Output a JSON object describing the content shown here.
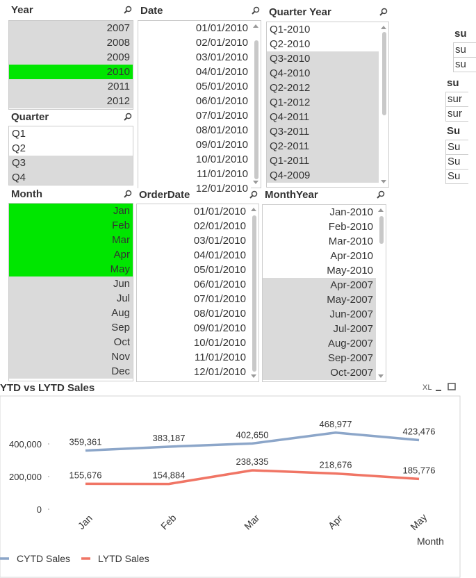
{
  "listboxes": [
    {
      "title": "Year",
      "items": [
        "2007",
        "2008",
        "2009",
        "2010",
        "2011",
        "2012"
      ],
      "states": [
        "excluded",
        "excluded",
        "excluded",
        "selected",
        "excluded",
        "excluded"
      ]
    },
    {
      "title": "Date",
      "items": [
        "01/01/2010",
        "02/01/2010",
        "03/01/2010",
        "04/01/2010",
        "05/01/2010",
        "06/01/2010",
        "07/01/2010",
        "08/01/2010",
        "09/01/2010",
        "10/01/2010",
        "11/01/2010",
        "12/01/2010"
      ],
      "states": [
        "optional",
        "optional",
        "optional",
        "optional",
        "optional",
        "optional",
        "optional",
        "optional",
        "optional",
        "optional",
        "optional",
        "optional"
      ]
    },
    {
      "title": "Quarter Year",
      "items": [
        "Q1-2010",
        "Q2-2010",
        "Q3-2010",
        "Q4-2010",
        "Q2-2012",
        "Q1-2012",
        "Q4-2011",
        "Q3-2011",
        "Q2-2011",
        "Q1-2011",
        "Q4-2009"
      ],
      "states": [
        "optional",
        "optional",
        "excluded",
        "excluded",
        "excluded",
        "excluded",
        "excluded",
        "excluded",
        "excluded",
        "excluded",
        "excluded"
      ]
    },
    {
      "title": "Quarter",
      "items": [
        "Q1",
        "Q2",
        "Q3",
        "Q4"
      ],
      "states": [
        "optional",
        "optional",
        "excluded",
        "excluded"
      ]
    },
    {
      "title": "Month",
      "items": [
        "Jan",
        "Feb",
        "Mar",
        "Apr",
        "May",
        "Jun",
        "Jul",
        "Aug",
        "Sep",
        "Oct",
        "Nov",
        "Dec"
      ],
      "states": [
        "selected",
        "selected",
        "selected",
        "selected",
        "selected",
        "excluded",
        "excluded",
        "excluded",
        "excluded",
        "excluded",
        "excluded",
        "excluded"
      ]
    },
    {
      "title": "OrderDate",
      "items": [
        "01/01/2010",
        "02/01/2010",
        "03/01/2010",
        "04/01/2010",
        "05/01/2010",
        "06/01/2010",
        "07/01/2010",
        "08/01/2010",
        "09/01/2010",
        "10/01/2010",
        "11/01/2010",
        "12/01/2010"
      ],
      "states": [
        "optional",
        "optional",
        "optional",
        "optional",
        "optional",
        "optional",
        "optional",
        "optional",
        "optional",
        "optional",
        "optional",
        "optional"
      ]
    },
    {
      "title": "MonthYear",
      "items": [
        "Jan-2010",
        "Feb-2010",
        "Mar-2010",
        "Apr-2010",
        "May-2010",
        "Apr-2007",
        "May-2007",
        "Jun-2007",
        "Jul-2007",
        "Aug-2007",
        "Sep-2007",
        "Oct-2007"
      ],
      "states": [
        "optional",
        "optional",
        "optional",
        "optional",
        "optional",
        "excluded",
        "excluded",
        "excluded",
        "excluded",
        "excluded",
        "excluded",
        "excluded"
      ]
    }
  ],
  "right_objects": [
    {
      "title": "su",
      "rows": [
        "su",
        "su"
      ]
    },
    {
      "title": "su",
      "rows": [
        "sur",
        "sur"
      ]
    },
    {
      "title": "Su",
      "rows": [
        "Su",
        "Su",
        "Su"
      ]
    }
  ],
  "chart_controls": [
    "XL"
  ],
  "chart_data": {
    "type": "line",
    "title": "YTD vs LYTD Sales",
    "x_label": "Month",
    "categories": [
      "Jan",
      "Feb",
      "Mar",
      "Apr",
      "May"
    ],
    "series": [
      {
        "name": "CYTD Sales",
        "color": "#8ca6c9",
        "values": [
          359361,
          383187,
          402650,
          468977,
          423476
        ],
        "value_labels": [
          "359,361",
          "383,187",
          "402,650",
          "468,977",
          "423,476"
        ]
      },
      {
        "name": "LYTD Sales",
        "color": "#f07565",
        "values": [
          155676,
          154884,
          238335,
          218676,
          185776
        ],
        "value_labels": [
          "155,676",
          "154,884",
          "238,335",
          "218,676",
          "185,776"
        ]
      }
    ],
    "ylim": [
      0,
      500000
    ],
    "yticks": [
      0,
      {
        "value": 200000,
        "label": "200,000"
      },
      {
        "value": 400000,
        "label": "400,000"
      }
    ],
    "grid": false,
    "legend": "bottom-left"
  }
}
